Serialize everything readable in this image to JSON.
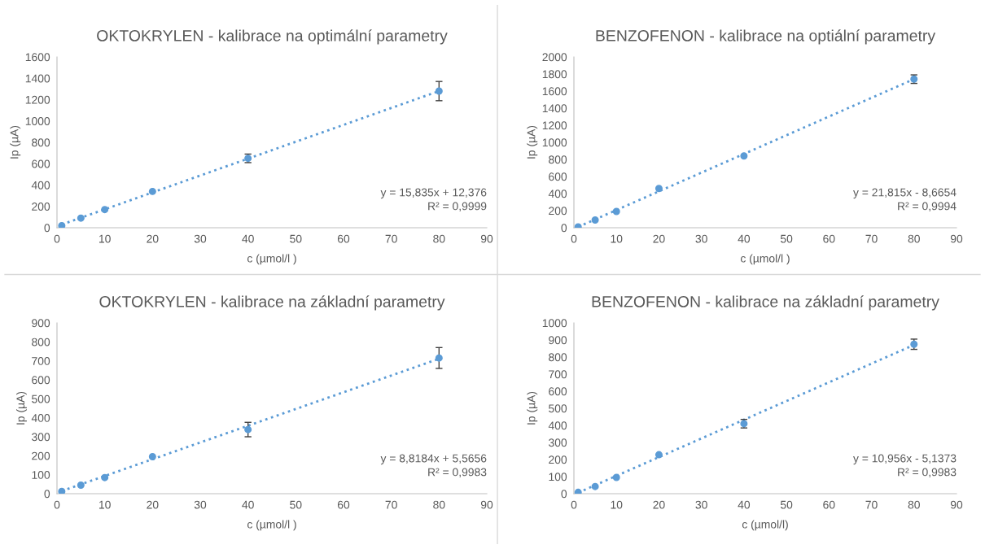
{
  "chart_data": [
    {
      "type": "scatter",
      "title": "OKTOKRYLEN - kalibrace na optimální parametry",
      "xlabel": "c (µmol/l )",
      "ylabel": "Ip (µA)",
      "marker": "circle",
      "grid": false,
      "legend": false,
      "xlim": [
        0,
        90
      ],
      "xticks": [
        0,
        10,
        20,
        30,
        40,
        50,
        60,
        70,
        80,
        90
      ],
      "ylim": [
        0,
        1600
      ],
      "yticks": [
        0,
        200,
        400,
        600,
        800,
        1000,
        1200,
        1400,
        1600
      ],
      "annotations": [
        "y = 15,835x + 12,376",
        "R² = 0,9999"
      ],
      "series": [
        {
          "color": "#5b9bd5",
          "x": [
            1,
            5,
            10,
            20,
            40,
            80
          ],
          "values": [
            20,
            90,
            170,
            340,
            650,
            1280
          ],
          "errors": [
            null,
            null,
            null,
            null,
            40,
            90
          ]
        },
        {
          "type": "line",
          "color": "#5b9bd5",
          "line_style": "dotted",
          "marker": "none",
          "x": [
            1,
            80
          ],
          "values": [
            30,
            1280
          ]
        }
      ]
    },
    {
      "type": "scatter",
      "title": "BENZOFENON - kalibrace na optiální parametry",
      "xlabel": "c (µmol/l )",
      "ylabel": "Ip (µA)",
      "marker": "circle",
      "grid": false,
      "legend": false,
      "xlim": [
        0,
        90
      ],
      "xticks": [
        0,
        10,
        20,
        30,
        40,
        50,
        60,
        70,
        80,
        90
      ],
      "ylim": [
        0,
        2000
      ],
      "yticks": [
        0,
        200,
        400,
        600,
        800,
        1000,
        1200,
        1400,
        1600,
        1800,
        2000
      ],
      "annotations": [
        "y = 21,815x - 8,6654",
        "R² = 0,9994"
      ],
      "series": [
        {
          "color": "#5b9bd5",
          "x": [
            1,
            5,
            10,
            20,
            40,
            80
          ],
          "values": [
            10,
            90,
            190,
            460,
            840,
            1740
          ],
          "errors": [
            null,
            null,
            null,
            null,
            null,
            50
          ]
        },
        {
          "type": "line",
          "color": "#5b9bd5",
          "line_style": "dotted",
          "marker": "none",
          "x": [
            1,
            80
          ],
          "values": [
            10,
            1740
          ]
        }
      ]
    },
    {
      "type": "scatter",
      "title": "OKTOKRYLEN - kalibrace na základní parametry",
      "xlabel": "c (µmol/l )",
      "ylabel": "Ip (µA)",
      "marker": "circle",
      "grid": false,
      "legend": false,
      "xlim": [
        0,
        90
      ],
      "xticks": [
        0,
        10,
        20,
        30,
        40,
        50,
        60,
        70,
        80,
        90
      ],
      "ylim": [
        0,
        900
      ],
      "yticks": [
        0,
        100,
        200,
        300,
        400,
        500,
        600,
        700,
        800,
        900
      ],
      "annotations": [
        "y = 8,8184x + 5,5656",
        "R² = 0,9983"
      ],
      "series": [
        {
          "color": "#5b9bd5",
          "x": [
            1,
            5,
            10,
            20,
            40,
            80
          ],
          "values": [
            12,
            45,
            85,
            195,
            338,
            715
          ],
          "errors": [
            null,
            null,
            null,
            null,
            38,
            55
          ]
        },
        {
          "type": "line",
          "color": "#5b9bd5",
          "line_style": "dotted",
          "marker": "none",
          "x": [
            1,
            80
          ],
          "values": [
            14,
            711
          ]
        }
      ]
    },
    {
      "type": "scatter",
      "title": "BENZOFENON - kalibrace na základní parametry",
      "xlabel": "c (µmol/l)",
      "ylabel": "Ip (µA)",
      "marker": "circle",
      "grid": false,
      "legend": false,
      "xlim": [
        0,
        90
      ],
      "xticks": [
        0,
        10,
        20,
        30,
        40,
        50,
        60,
        70,
        80,
        90
      ],
      "ylim": [
        0,
        1000
      ],
      "yticks": [
        0,
        100,
        200,
        300,
        400,
        500,
        600,
        700,
        800,
        900,
        1000
      ],
      "annotations": [
        "y = 10,956x - 5,1373",
        "R² = 0,9983"
      ],
      "series": [
        {
          "color": "#5b9bd5",
          "x": [
            1,
            5,
            10,
            20,
            40,
            80
          ],
          "values": [
            8,
            42,
            95,
            228,
            410,
            875
          ],
          "errors": [
            null,
            null,
            null,
            null,
            25,
            30
          ]
        },
        {
          "type": "line",
          "color": "#5b9bd5",
          "line_style": "dotted",
          "marker": "none",
          "x": [
            1,
            80
          ],
          "values": [
            6,
            871
          ]
        }
      ]
    }
  ]
}
